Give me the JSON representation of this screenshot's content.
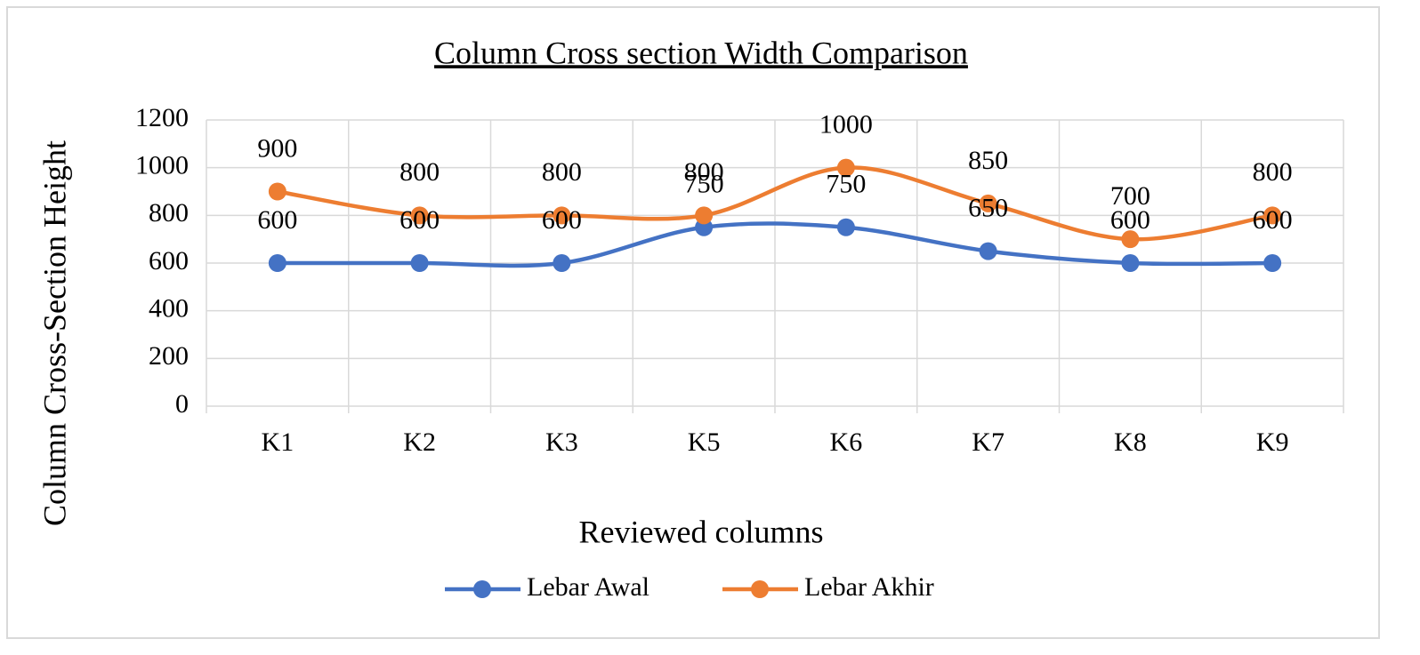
{
  "chart_data": {
    "type": "line",
    "title": "Column Cross section Width Comparison",
    "x_label": "Reviewed columns",
    "y_label": "Column Cross-Section Height",
    "categories": [
      "K1",
      "K2",
      "K3",
      "K5",
      "K6",
      "K7",
      "K8",
      "K9"
    ],
    "series": [
      {
        "name": "Lebar Awal",
        "color": "#4472c4",
        "values": [
          600,
          600,
          600,
          750,
          750,
          650,
          600,
          600
        ]
      },
      {
        "name": "Lebar Akhir",
        "color": "#ed7d31",
        "values": [
          900,
          800,
          800,
          800,
          1000,
          850,
          700,
          800
        ]
      }
    ],
    "ylim": [
      0,
      1200
    ],
    "yticks": [
      0,
      200,
      400,
      600,
      800,
      1000,
      1200
    ],
    "grid": true,
    "smooth": true,
    "legend": "bottom"
  }
}
